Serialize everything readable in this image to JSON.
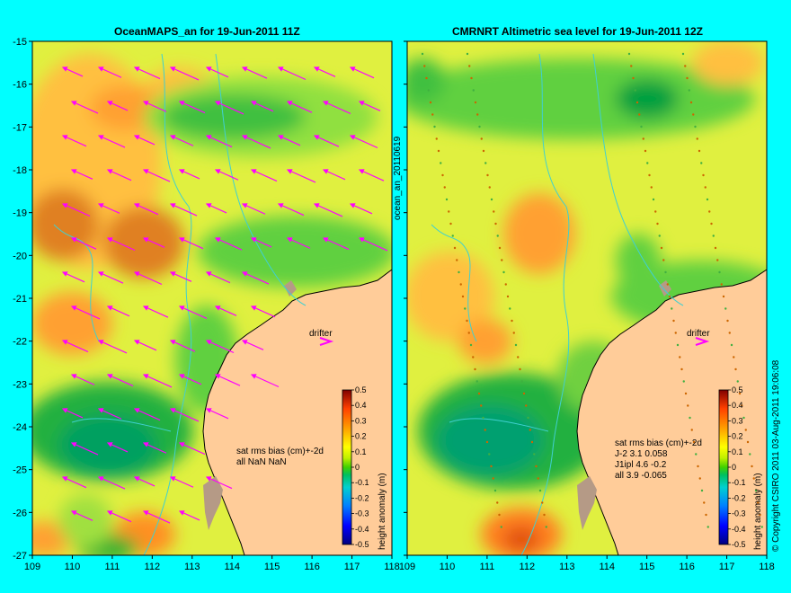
{
  "panels": [
    {
      "title": "OceanMAPS_an for 19-Jun-2011 11Z",
      "drifter_label": "drifter",
      "stats_lines": [
        "sat rms bias (cm)+-2d",
        "all NaN NaN"
      ],
      "has_arrows": true
    },
    {
      "title": "CMRNRT Altimetric sea level  for 19-Jun-2011 12Z",
      "drifter_label": "drifter",
      "stats_lines": [
        "sat rms bias (cm)+-2d",
        "J-2   3.1 0.058",
        "J1ipl 4.6 -0.2",
        "all 3.9 -0.065"
      ],
      "has_arrows": false
    }
  ],
  "axes": {
    "lon_range": [
      109,
      118
    ],
    "lat_range": [
      -27,
      -15
    ],
    "lon_ticks": [
      "109",
      "110",
      "111",
      "112",
      "113",
      "114",
      "115",
      "116",
      "117",
      "118"
    ],
    "lat_ticks": [
      "-15",
      "-16",
      "-17",
      "-18",
      "-19",
      "-20",
      "-21",
      "-22",
      "-23",
      "-24",
      "-25",
      "-26",
      "-27"
    ]
  },
  "colorbar": {
    "label": "height anomaly (m)",
    "ticks": [
      "0.5",
      "0.4",
      "0.3",
      "0.2",
      "0.1",
      "0",
      "-0.1",
      "-0.2",
      "-0.3",
      "-0.4",
      "-0.5"
    ],
    "range": [
      -0.5,
      0.5
    ]
  },
  "side_labels": {
    "run_id": "ocean_an_20110619",
    "copyright": "© Copyright CSIRO 2011  03-Aug-2011 19:06:08"
  },
  "colors": {
    "background": "#00ffff",
    "land": "#ffcc99",
    "reef": "#b59a86",
    "arrow": "#ff00ff",
    "contour": "#40d0d0"
  }
}
